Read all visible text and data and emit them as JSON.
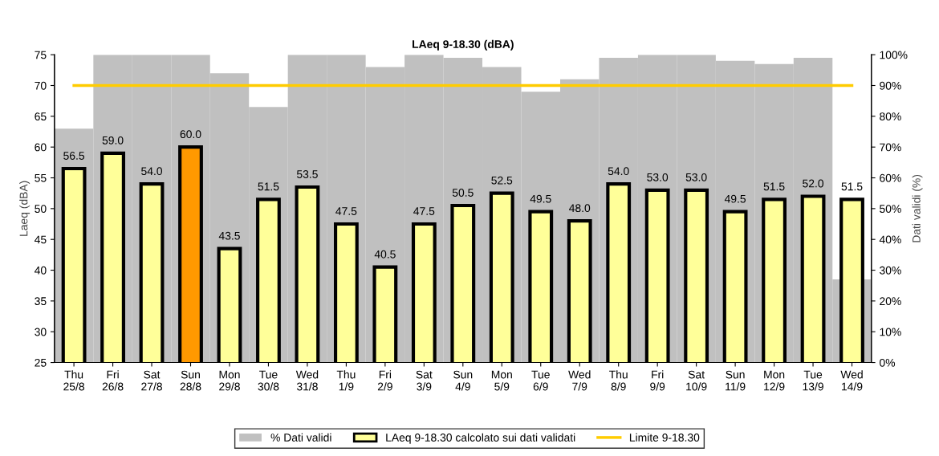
{
  "chart_data": {
    "type": "bar",
    "title": "LAeq 9-18.30 (dBA)",
    "ylabel": "Laeq (dBA)",
    "y2label": "Dati validi (%)",
    "categories": [
      "Thu\n25/8",
      "Fri\n26/8",
      "Sat\n27/8",
      "Sun\n28/8",
      "Mon\n29/8",
      "Tue\n30/8",
      "Wed\n31/8",
      "Thu\n1/9",
      "Fri\n2/9",
      "Sat\n3/9",
      "Sun\n4/9",
      "Mon\n5/9",
      "Tue\n6/9",
      "Wed\n7/9",
      "Thu\n8/9",
      "Fri\n9/9",
      "Sat\n10/9",
      "Sun\n11/9",
      "Mon\n12/9",
      "Tue\n13/9",
      "Wed\n14/9"
    ],
    "series": [
      {
        "name": "% Dati validi",
        "axis": "y2",
        "color": "#c0c0c0",
        "values": [
          76,
          100,
          100,
          100,
          94,
          83,
          100,
          100,
          96,
          100,
          99,
          96,
          88,
          92,
          99,
          100,
          100,
          98,
          97,
          99,
          27
        ]
      },
      {
        "name": "LAeq 9-18.30 calcolato sui dati validati",
        "color": "#ffff99",
        "colors": [
          "#ffff99",
          "#ffff99",
          "#ffff99",
          "#ff9900",
          "#ffff99",
          "#ffff99",
          "#ffff99",
          "#ffff99",
          "#ffff99",
          "#ffff99",
          "#ffff99",
          "#ffff99",
          "#ffff99",
          "#ffff99",
          "#ffff99",
          "#ffff99",
          "#ffff99",
          "#ffff99",
          "#ffff99",
          "#ffff99",
          "#ffff99"
        ],
        "value_labels": [
          "56.5",
          "59.0",
          "54.0",
          "60.0",
          "43.5",
          "51.5",
          "53.5",
          "47.5",
          "40.5",
          "47.5",
          "50.5",
          "52.5",
          "49.5",
          "48.0",
          "54.0",
          "53.0",
          "53.0",
          "49.5",
          "51.5",
          "52.0",
          "51.5"
        ],
        "values": [
          56.5,
          59.0,
          54.0,
          60.0,
          43.5,
          51.5,
          53.5,
          47.5,
          40.5,
          47.5,
          50.5,
          52.5,
          49.5,
          48.0,
          54.0,
          53.0,
          53.0,
          49.5,
          51.5,
          52.0,
          51.5
        ]
      },
      {
        "name": "Limite 9-18.30",
        "type": "line",
        "color": "#ffcc00",
        "values": [
          70,
          70,
          70,
          70,
          70,
          70,
          70,
          70,
          70,
          70,
          70,
          70,
          70,
          70,
          70,
          70,
          70,
          70,
          70,
          70,
          70
        ]
      }
    ],
    "ylim": [
      25,
      75
    ],
    "yticks": [
      25,
      30,
      35,
      40,
      45,
      50,
      55,
      60,
      65,
      70,
      75
    ],
    "y2lim": [
      0,
      100
    ],
    "y2ticks": [
      {
        "value": 0,
        "label": "0%"
      },
      {
        "value": 10,
        "label": "10%"
      },
      {
        "value": 20,
        "label": "20%"
      },
      {
        "value": 30,
        "label": "30%"
      },
      {
        "value": 40,
        "label": "40%"
      },
      {
        "value": 50,
        "label": "50%"
      },
      {
        "value": 60,
        "label": "60%"
      },
      {
        "value": 70,
        "label": "70%"
      },
      {
        "value": 80,
        "label": "80%"
      },
      {
        "value": 90,
        "label": "90%"
      },
      {
        "value": 100,
        "label": "100%"
      }
    ],
    "grid": false,
    "legend": "bottom"
  }
}
